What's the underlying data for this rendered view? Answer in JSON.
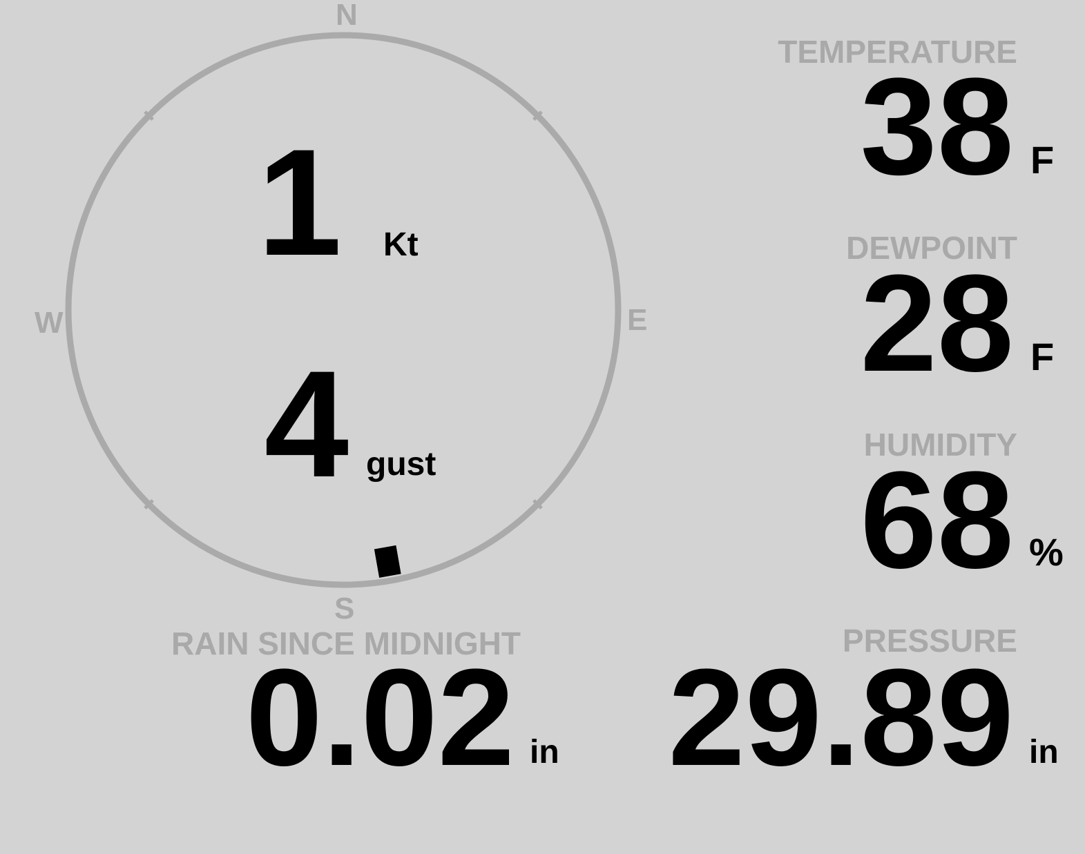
{
  "wind": {
    "compass": {
      "north": "N",
      "south": "S",
      "east": "E",
      "west": "W"
    },
    "speed": "1",
    "speed_unit": "Kt",
    "gust": "4",
    "gust_unit": "gust",
    "direction_deg": 170,
    "ring_color": "#aaaaaa",
    "indicator_color": "#000000"
  },
  "temperature": {
    "label": "TEMPERATURE",
    "value": "38",
    "unit": "F"
  },
  "dewpoint": {
    "label": "DEWPOINT",
    "value": "28",
    "unit": "F"
  },
  "humidity": {
    "label": "HUMIDITY",
    "value": "68",
    "unit": "%"
  },
  "rain": {
    "label": "RAIN SINCE MIDNIGHT",
    "value": "0.02",
    "unit": "in"
  },
  "pressure": {
    "label": "PRESSURE",
    "value": "29.89",
    "unit": "in"
  },
  "colors": {
    "background": "#d3d3d3",
    "label": "#a9a9a9",
    "value": "#000000"
  }
}
